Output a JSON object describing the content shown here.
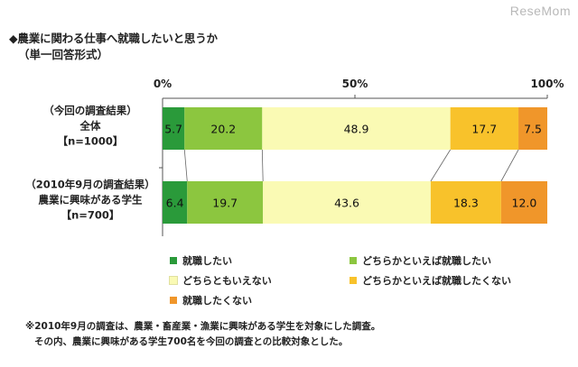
{
  "header": {
    "title": "◆農業に関わる仕事へ就職したいと思うか",
    "subtitle": "（単一回答形式）",
    "brand": "ReseMom"
  },
  "chart_data": {
    "type": "bar",
    "orientation": "horizontal-stacked-100",
    "xlim": [
      0,
      100
    ],
    "tick_labels": [
      "0%",
      "50%",
      "100%"
    ],
    "categories": [
      [
        "（今回の調査結果）",
        "全体",
        "【n=1000】"
      ],
      [
        "（2010年9月の調査結果）",
        "農業に興味がある学生",
        "【n=700】"
      ]
    ],
    "series": [
      {
        "name": "就職したい",
        "color": "#2a9a3a",
        "values": [
          5.7,
          6.4
        ]
      },
      {
        "name": "どちらかといえば就職したい",
        "color": "#8cc63f",
        "values": [
          20.2,
          19.7
        ]
      },
      {
        "name": "どちらともいえない",
        "color": "#fafab4",
        "values": [
          48.9,
          43.6
        ]
      },
      {
        "name": "どちらかといえば就職したくない",
        "color": "#f8c22b",
        "values": [
          17.7,
          18.3
        ]
      },
      {
        "name": "就職したくない",
        "color": "#f0962a",
        "values": [
          7.5,
          12.0
        ]
      }
    ],
    "data_labels": [
      [
        "5.7",
        "20.2",
        "48.9",
        "17.7",
        "7.5"
      ],
      [
        "6.4",
        "19.7",
        "43.6",
        "18.3",
        "12.0"
      ]
    ],
    "legend_position": "bottom"
  },
  "notes": [
    "※2010年9月の調査は、農業・畜産業・漁業に興味がある学生を対象にした調査。",
    "その内、農業に興味がある学生700名を今回の調査との比較対象とした。"
  ]
}
